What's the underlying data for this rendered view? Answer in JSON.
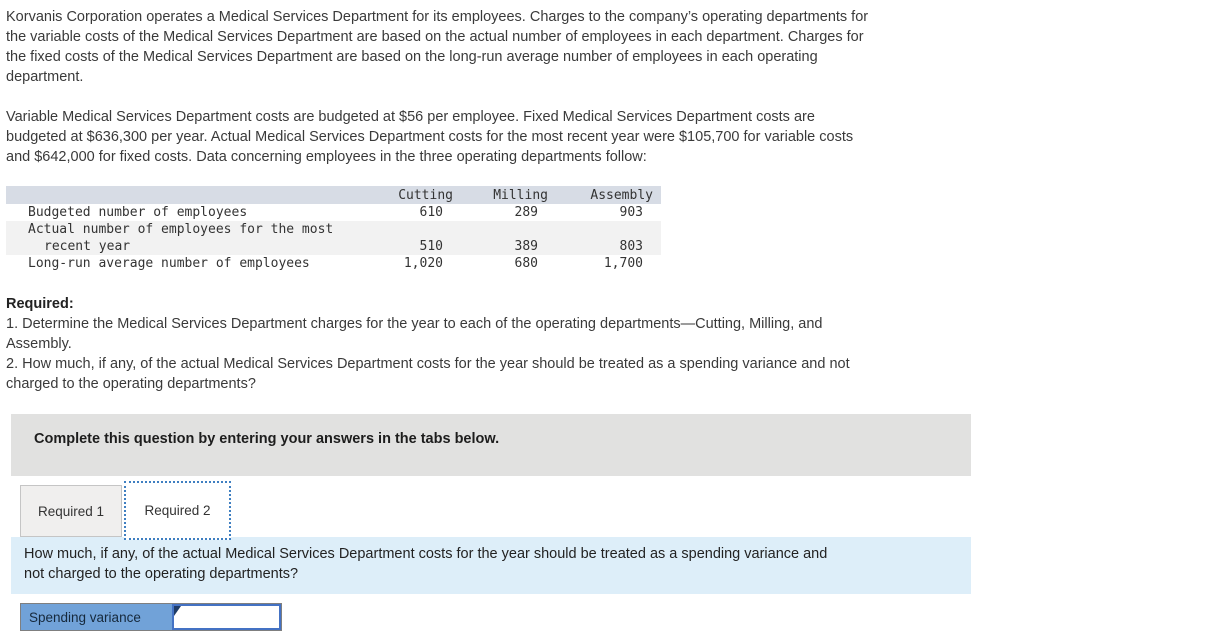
{
  "colors": {
    "table_header_bg": "#d7dce5",
    "table_stripe_bg": "#f2f2f2",
    "banner_bg": "#e1e1e0",
    "question_panel_bg": "#ddeef9",
    "answer_label_bg": "#71a2d8",
    "input_border": "#4472c4",
    "active_tab_dotted_border": "#3f7fc1"
  },
  "intro": {
    "para1": "Korvanis Corporation operates a Medical Services Department for its employees. Charges to the company’s operating departments for\nthe variable costs of the Medical Services Department are based on the actual number of employees in each department. Charges for\nthe fixed costs of the Medical Services Department are based on the long-run average number of employees in each operating\ndepartment.",
    "para2": "Variable Medical Services Department costs are budgeted at $56 per employee. Fixed Medical Services Department costs are\nbudgeted at $636,300 per year. Actual Medical Services Department costs for the most recent year were $105,700 for variable costs\nand $642,000 for fixed costs. Data concerning employees in the three operating departments follow:"
  },
  "employee_table": {
    "columns": [
      "Cutting",
      "Milling",
      "Assembly"
    ],
    "rows": [
      {
        "label": "Budgeted number of employees",
        "values": [
          "610",
          "289",
          "903"
        ]
      },
      {
        "label": "Actual number of employees for the most",
        "values": [
          "",
          "",
          ""
        ]
      },
      {
        "label": "recent year",
        "values": [
          "510",
          "389",
          "803"
        ]
      },
      {
        "label": "Long-run average number of employees",
        "values": [
          "1,020",
          "680",
          "1,700"
        ]
      }
    ]
  },
  "required": {
    "heading": "Required:",
    "item1": "1. Determine the Medical Services Department charges for the year to each of the operating departments—Cutting, Milling, and\nAssembly.",
    "item2": "2. How much, if any, of the actual Medical Services Department costs for the year should be treated as a spending variance and not\ncharged to the operating departments?"
  },
  "answer_panel": {
    "banner": "Complete this question by entering your answers in the tabs below.",
    "tabs": [
      {
        "label": "Required 1"
      },
      {
        "label": "Required 2"
      }
    ],
    "active_tab": "Required 2",
    "question": "How much, if any, of the actual Medical Services Department costs for the year should be treated as a spending variance and\nnot charged to the operating departments?",
    "input_row": {
      "label": "Spending variance",
      "value": ""
    }
  }
}
